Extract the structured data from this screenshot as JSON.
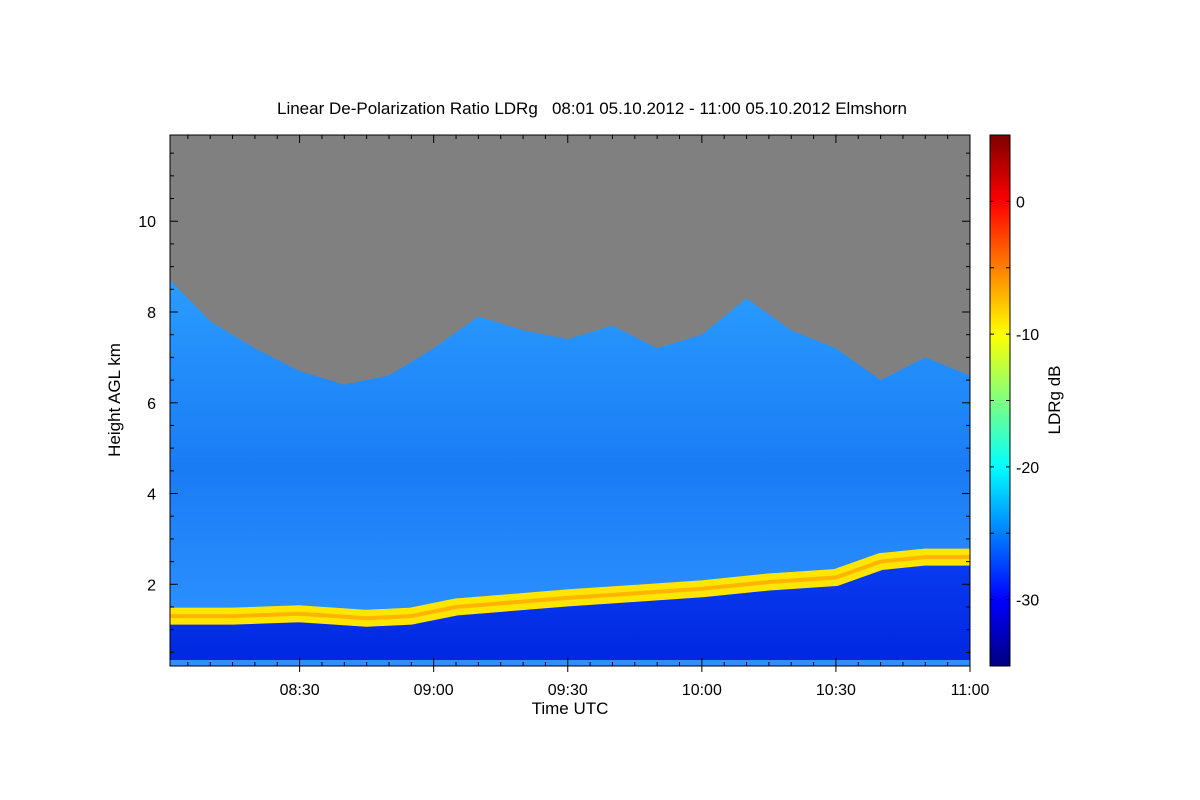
{
  "chart_data": {
    "type": "heatmap",
    "title": "Linear De-Polarization Ratio LDRg   08:01 05.10.2012 - 11:00 05.10.2012 Elmshorn",
    "xlabel": "Time UTC",
    "ylabel": "Height AGL km",
    "colorbar_label": "LDRg dB",
    "xlim": [
      "08:01",
      "11:00"
    ],
    "ylim": [
      0.2,
      11.9
    ],
    "clim": [
      -35,
      5
    ],
    "x_ticks": [
      "08:30",
      "09:00",
      "09:30",
      "10:00",
      "10:30",
      "11:00"
    ],
    "y_ticks": [
      "2",
      "4",
      "6",
      "8",
      "10"
    ],
    "colorbar_ticks": [
      "0",
      "-10",
      "-20",
      "-30"
    ],
    "colormap": "jet",
    "colormap_stops": [
      "#00007f",
      "#0000ff",
      "#007fff",
      "#00ffff",
      "#7fff7f",
      "#ffff00",
      "#ff7f00",
      "#ff0000",
      "#7f0000"
    ],
    "nodata_color": "#808080",
    "layers": [
      {
        "feature": "boundary layer top",
        "ldr_db": -8,
        "time": [
          "08:01",
          "08:15",
          "08:30",
          "08:45",
          "08:55",
          "09:05",
          "09:30",
          "09:45",
          "10:00",
          "10:15",
          "10:30",
          "10:40",
          "10:50",
          "11:00"
        ],
        "height_km": [
          1.3,
          1.3,
          1.35,
          1.25,
          1.3,
          1.5,
          1.7,
          1.8,
          1.9,
          2.05,
          2.15,
          2.5,
          2.6,
          2.6
        ]
      },
      {
        "feature": "cloud top",
        "ldr_db": -24,
        "time": [
          "08:01",
          "08:10",
          "08:20",
          "08:30",
          "08:40",
          "08:50",
          "09:00",
          "09:10",
          "09:20",
          "09:30",
          "09:40",
          "09:50",
          "10:00",
          "10:10",
          "10:20",
          "10:30",
          "10:40",
          "10:50",
          "11:00"
        ],
        "height_km": [
          8.7,
          7.8,
          7.2,
          6.7,
          6.4,
          6.6,
          7.2,
          7.9,
          7.6,
          7.4,
          7.7,
          7.2,
          7.5,
          8.3,
          7.6,
          7.2,
          6.5,
          7.0,
          6.6
        ]
      }
    ],
    "grid": false,
    "legend": "colorbar-right"
  }
}
